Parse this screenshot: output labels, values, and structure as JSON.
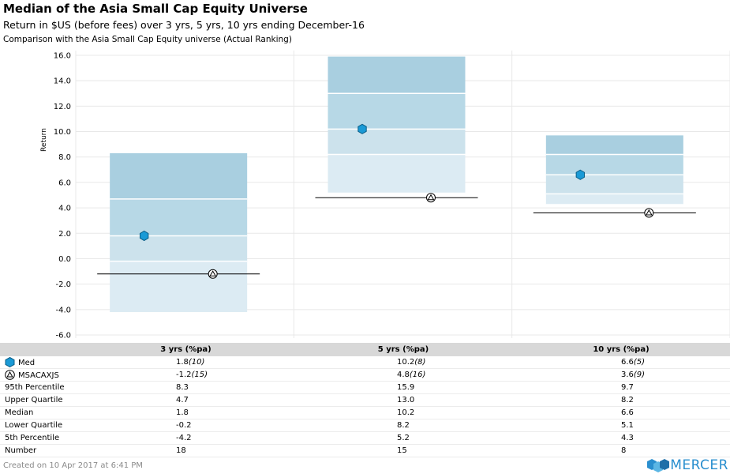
{
  "header": {
    "title": "Median of the Asia Small Cap Equity Universe",
    "subtitle": "Return in $US (before fees) over 3 yrs, 5 yrs, 10 yrs ending December-16",
    "subtitle2": "Comparison with the Asia Small Cap Equity universe (Actual Ranking)"
  },
  "chart_data": {
    "type": "floating-bar-percentile",
    "ylabel": "Return",
    "ylim": [
      -6,
      16
    ],
    "yticks": [
      "16.0",
      "14.0",
      "12.0",
      "10.0",
      "8.0",
      "6.0",
      "4.0",
      "2.0",
      "0.0",
      "-2.0",
      "-4.0",
      "-6.0"
    ],
    "categories": [
      "3 yrs (%pa)",
      "5 yrs (%pa)",
      "10 yrs (%pa)"
    ],
    "percentiles": {
      "p95": [
        8.3,
        15.9,
        9.7
      ],
      "upper_quartile": [
        4.7,
        13.0,
        8.2
      ],
      "median": [
        1.8,
        10.2,
        6.6
      ],
      "lower_quartile": [
        -0.2,
        8.2,
        5.1
      ],
      "p5": [
        -4.2,
        5.2,
        4.3
      ]
    },
    "series": [
      {
        "name": "Med",
        "values": [
          1.8,
          10.2,
          6.6
        ],
        "marker": "hexagon",
        "color": "#1a9ad6"
      },
      {
        "name": "MSACAXJS",
        "values": [
          -1.2,
          4.8,
          3.6
        ],
        "marker": "triangle-circle",
        "color": "#ffffff"
      }
    ],
    "band_colors": [
      "#a9cfe0",
      "#b7d8e6",
      "#cce2ec",
      "#dcebf3"
    ],
    "grid": true
  },
  "table": {
    "columns": [
      "3 yrs (%pa)",
      "5 yrs (%pa)",
      "10 yrs (%pa)"
    ],
    "rows": [
      {
        "label": "Med",
        "icon": "hexagon-icon",
        "cells": [
          [
            "1.8",
            "(10)"
          ],
          [
            "10.2",
            "(8)"
          ],
          [
            "6.6",
            "(5)"
          ]
        ]
      },
      {
        "label": "MSACAXJS",
        "icon": "triangle-circle-icon",
        "cells": [
          [
            "-1.2",
            "(15)"
          ],
          [
            "4.8",
            "(16)"
          ],
          [
            "3.6",
            "(9)"
          ]
        ]
      },
      {
        "label": "95th Percentile",
        "cells": [
          [
            "8.3",
            ""
          ],
          [
            "15.9",
            ""
          ],
          [
            "9.7",
            ""
          ]
        ]
      },
      {
        "label": "Upper Quartile",
        "cells": [
          [
            "4.7",
            ""
          ],
          [
            "13.0",
            ""
          ],
          [
            "8.2",
            ""
          ]
        ]
      },
      {
        "label": "Median",
        "cells": [
          [
            "1.8",
            ""
          ],
          [
            "10.2",
            ""
          ],
          [
            "6.6",
            ""
          ]
        ]
      },
      {
        "label": "Lower Quartile",
        "cells": [
          [
            "-0.2",
            ""
          ],
          [
            "8.2",
            ""
          ],
          [
            "5.1",
            ""
          ]
        ]
      },
      {
        "label": "5th Percentile",
        "cells": [
          [
            "-4.2",
            ""
          ],
          [
            "5.2",
            ""
          ],
          [
            "4.3",
            ""
          ]
        ]
      },
      {
        "label": "Number",
        "cells": [
          [
            "18",
            ""
          ],
          [
            "15",
            ""
          ],
          [
            "8",
            ""
          ]
        ]
      }
    ]
  },
  "footer": {
    "created": "Created on 10 Apr 2017 at 6:41 PM",
    "logo": "MERCER"
  }
}
